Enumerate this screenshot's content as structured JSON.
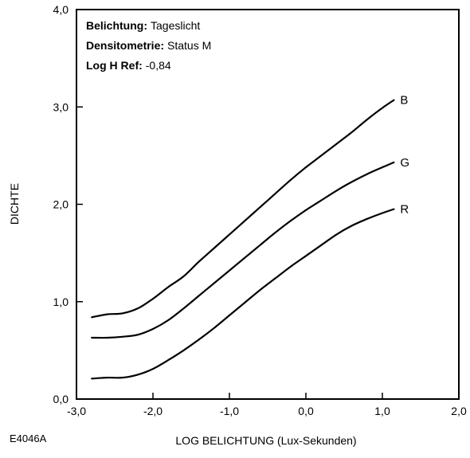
{
  "figure_id": "E4046A",
  "info": [
    {
      "key": "Belichtung:",
      "value": "Tageslicht"
    },
    {
      "key": "Densitometrie:",
      "value": "Status M"
    },
    {
      "key": "Log H Ref:",
      "value": "-0,84"
    }
  ],
  "chart_data": {
    "type": "line",
    "xlabel": "LOG BELICHTUNG (Lux-Sekunden)",
    "ylabel": "DICHTE",
    "xlim": [
      -3.0,
      2.0
    ],
    "ylim": [
      0.0,
      4.0
    ],
    "x_ticks": [
      {
        "value": -3.0,
        "label": "-3,0"
      },
      {
        "value": -2.0,
        "label": "-2,0"
      },
      {
        "value": -1.0,
        "label": "-1,0"
      },
      {
        "value": 0.0,
        "label": "0,0"
      },
      {
        "value": 1.0,
        "label": "1,0"
      },
      {
        "value": 2.0,
        "label": "2,0"
      }
    ],
    "y_ticks": [
      {
        "value": 0.0,
        "label": "0,0"
      },
      {
        "value": 1.0,
        "label": "1,0"
      },
      {
        "value": 2.0,
        "label": "2,0"
      },
      {
        "value": 3.0,
        "label": "3,0"
      },
      {
        "value": 4.0,
        "label": "4,0"
      }
    ],
    "grid": false,
    "series": [
      {
        "name": "B",
        "color": "#000000",
        "points": [
          [
            -2.8,
            0.84
          ],
          [
            -2.6,
            0.87
          ],
          [
            -2.4,
            0.88
          ],
          [
            -2.2,
            0.93
          ],
          [
            -2.0,
            1.03
          ],
          [
            -1.8,
            1.15
          ],
          [
            -1.6,
            1.26
          ],
          [
            -1.4,
            1.41
          ],
          [
            -1.2,
            1.55
          ],
          [
            -1.0,
            1.69
          ],
          [
            -0.8,
            1.83
          ],
          [
            -0.6,
            1.97
          ],
          [
            -0.4,
            2.11
          ],
          [
            -0.2,
            2.25
          ],
          [
            0.0,
            2.38
          ],
          [
            0.2,
            2.5
          ],
          [
            0.4,
            2.62
          ],
          [
            0.6,
            2.74
          ],
          [
            0.8,
            2.87
          ],
          [
            1.0,
            2.99
          ],
          [
            1.15,
            3.07
          ]
        ]
      },
      {
        "name": "G",
        "color": "#000000",
        "points": [
          [
            -2.8,
            0.63
          ],
          [
            -2.6,
            0.63
          ],
          [
            -2.4,
            0.64
          ],
          [
            -2.2,
            0.66
          ],
          [
            -2.0,
            0.72
          ],
          [
            -1.8,
            0.81
          ],
          [
            -1.6,
            0.93
          ],
          [
            -1.4,
            1.06
          ],
          [
            -1.2,
            1.19
          ],
          [
            -1.0,
            1.32
          ],
          [
            -0.8,
            1.45
          ],
          [
            -0.6,
            1.58
          ],
          [
            -0.4,
            1.71
          ],
          [
            -0.2,
            1.83
          ],
          [
            0.0,
            1.94
          ],
          [
            0.2,
            2.04
          ],
          [
            0.4,
            2.14
          ],
          [
            0.6,
            2.23
          ],
          [
            0.8,
            2.31
          ],
          [
            1.0,
            2.38
          ],
          [
            1.15,
            2.43
          ]
        ]
      },
      {
        "name": "R",
        "color": "#000000",
        "points": [
          [
            -2.8,
            0.21
          ],
          [
            -2.6,
            0.22
          ],
          [
            -2.4,
            0.22
          ],
          [
            -2.2,
            0.25
          ],
          [
            -2.0,
            0.31
          ],
          [
            -1.8,
            0.4
          ],
          [
            -1.6,
            0.5
          ],
          [
            -1.4,
            0.61
          ],
          [
            -1.2,
            0.73
          ],
          [
            -1.0,
            0.86
          ],
          [
            -0.8,
            0.99
          ],
          [
            -0.6,
            1.12
          ],
          [
            -0.4,
            1.24
          ],
          [
            -0.2,
            1.36
          ],
          [
            0.0,
            1.47
          ],
          [
            0.2,
            1.58
          ],
          [
            0.4,
            1.69
          ],
          [
            0.6,
            1.78
          ],
          [
            0.8,
            1.85
          ],
          [
            1.0,
            1.91
          ],
          [
            1.15,
            1.95
          ]
        ]
      }
    ]
  }
}
